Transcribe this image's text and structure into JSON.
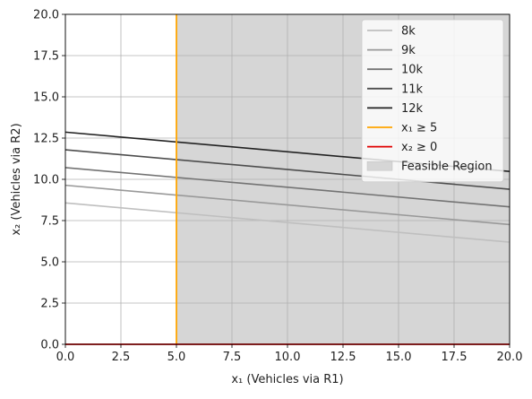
{
  "chart_data": {
    "type": "line",
    "xlabel": "x₁ (Vehicles via R1)",
    "ylabel": "x₂ (Vehicles via R2)",
    "xlim": [
      0,
      20
    ],
    "ylim": [
      0,
      20
    ],
    "xticks": [
      "0.0",
      "2.5",
      "5.0",
      "7.5",
      "10.0",
      "12.5",
      "15.0",
      "17.5",
      "20.0"
    ],
    "yticks": [
      "0.0",
      "2.5",
      "5.0",
      "7.5",
      "10.0",
      "12.5",
      "15.0",
      "17.5",
      "20.0"
    ],
    "grid": true,
    "legend_position": "top-right",
    "series": [
      {
        "name": "8k",
        "x": [
          0,
          20
        ],
        "y": [
          8.57,
          6.19
        ],
        "color": "#bfbfbf"
      },
      {
        "name": "9k",
        "x": [
          0,
          20
        ],
        "y": [
          9.64,
          7.26
        ],
        "color": "#999999"
      },
      {
        "name": "10k",
        "x": [
          0,
          20
        ],
        "y": [
          10.71,
          8.33
        ],
        "color": "#737373"
      },
      {
        "name": "11k",
        "x": [
          0,
          20
        ],
        "y": [
          11.79,
          9.4
        ],
        "color": "#4d4d4d"
      },
      {
        "name": "12k",
        "x": [
          0,
          20
        ],
        "y": [
          12.86,
          10.48
        ],
        "color": "#222222"
      }
    ],
    "constraints": [
      {
        "name": "x₁ ≥ 5",
        "type": "vertical",
        "value": 5,
        "color": "#ffa500"
      },
      {
        "name": "x₂ ≥ 0",
        "type": "horizontal",
        "value": 0,
        "color": "#e00000"
      }
    ],
    "feasible_region": {
      "name": "Feasible Region",
      "x_min": 5,
      "x_max": 20,
      "y_min": 0,
      "y_max": 20,
      "color": "#d6d6d6"
    }
  }
}
